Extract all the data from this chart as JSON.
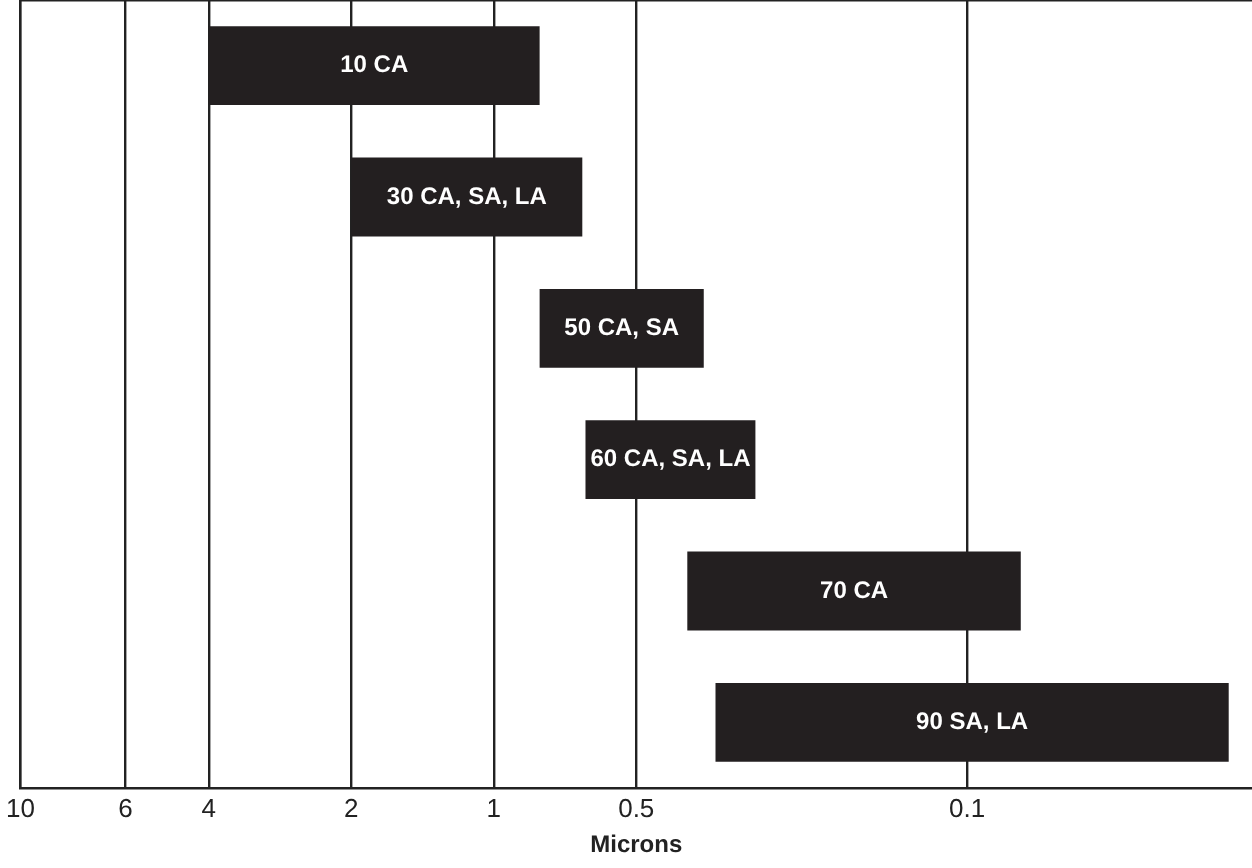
{
  "chart_data": {
    "type": "bar",
    "orientation": "horizontal",
    "xlabel": "Microns",
    "categories": [
      "10 CA",
      "30 CA, SA, LA",
      "50 CA, SA",
      "60 CA, SA, LA",
      "70 CA",
      "90 SA, LA"
    ],
    "base": [
      4,
      2,
      0.8,
      0.64,
      0.39,
      0.34
    ],
    "values": [
      -3.2,
      -1.35,
      -0.44,
      -0.36,
      -0.313,
      -0.312
    ],
    "color": "#231f20",
    "log": "x",
    "xlim": [
      10,
      0.025
    ],
    "xticks": [
      10,
      6,
      4,
      2,
      1,
      0.5,
      0.1
    ],
    "grid": "x",
    "tick_labels": "x",
    "legend": false
  }
}
